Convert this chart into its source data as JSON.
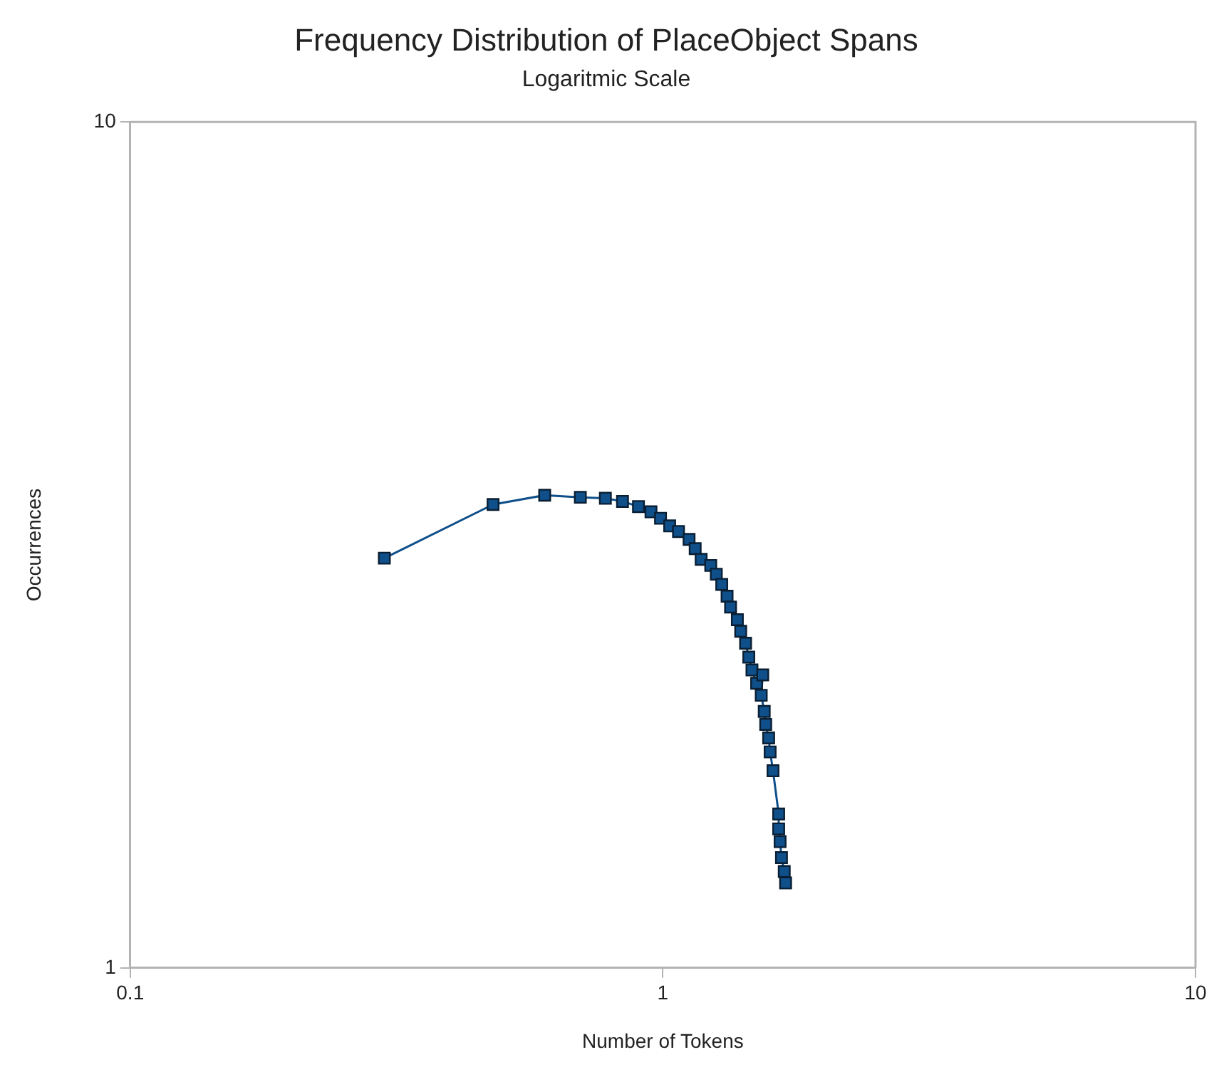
{
  "chart_data": {
    "type": "line",
    "title": "Frequency Distribution of PlaceObject Spans",
    "subtitle": "Logaritmic Scale",
    "xlabel": "Number of Tokens",
    "ylabel": "Occurrences",
    "log": "xy",
    "xlim": [
      0.1,
      10
    ],
    "ylim": [
      1,
      10
    ],
    "xticks": [
      0.1,
      1,
      10
    ],
    "yticks": [
      1,
      10
    ],
    "grid": false,
    "legend": false,
    "marker": "square",
    "line_style": "solid",
    "series": [
      {
        "color": "#0f4f8a",
        "x": [
          0.3,
          0.48,
          0.6,
          0.7,
          0.78,
          0.84,
          0.9,
          0.95,
          0.99,
          1.03,
          1.07,
          1.12,
          1.15,
          1.18,
          1.23,
          1.26,
          1.29,
          1.32,
          1.34,
          1.38,
          1.4,
          1.43,
          1.45,
          1.47,
          1.5,
          1.54,
          1.53,
          1.55,
          1.56,
          1.58,
          1.59,
          1.61,
          1.65,
          1.65,
          1.66,
          1.67,
          1.69,
          1.7
        ],
        "values": [
          3.05,
          3.53,
          3.62,
          3.6,
          3.59,
          3.56,
          3.51,
          3.46,
          3.4,
          3.33,
          3.28,
          3.21,
          3.13,
          3.04,
          2.99,
          2.92,
          2.84,
          2.75,
          2.67,
          2.58,
          2.5,
          2.42,
          2.33,
          2.25,
          2.17,
          2.22,
          2.1,
          2.01,
          1.94,
          1.87,
          1.8,
          1.71,
          1.52,
          1.46,
          1.41,
          1.35,
          1.3,
          1.26
        ]
      }
    ]
  }
}
